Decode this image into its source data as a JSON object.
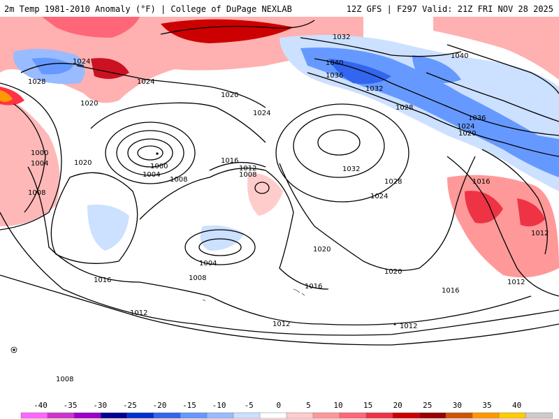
{
  "header": {
    "left_title": "2m Temp 1981-2010 Anomaly (°F) | College of DuPage NEXLAB",
    "right_title": "12Z GFS | F297 Valid: 21Z FRI NOV 28 2025"
  },
  "isobar_labels": [
    {
      "id": "iso-1032-n",
      "text": "1032"
    },
    {
      "id": "iso-1040-a",
      "text": "1040"
    },
    {
      "id": "iso-1040-b",
      "text": "1040"
    },
    {
      "id": "iso-1036-a",
      "text": "1036"
    },
    {
      "id": "iso-1032-c",
      "text": "1032"
    },
    {
      "id": "iso-1028-c",
      "text": "1028"
    },
    {
      "id": "iso-1036-b",
      "text": "1036"
    },
    {
      "id": "iso-1024-c",
      "text": "1024"
    },
    {
      "id": "iso-1020-c",
      "text": "1020"
    },
    {
      "id": "iso-1024-w",
      "text": "1024"
    },
    {
      "id": "iso-1028-w",
      "text": "1028"
    },
    {
      "id": "iso-1024-w2",
      "text": "1024"
    },
    {
      "id": "iso-1020-w",
      "text": "1020"
    },
    {
      "id": "iso-1020-m",
      "text": "1020"
    },
    {
      "id": "iso-1024-m",
      "text": "1024"
    },
    {
      "id": "iso-1000-w",
      "text": "1000"
    },
    {
      "id": "iso-1004-w",
      "text": "1004"
    },
    {
      "id": "iso-1008-w",
      "text": "1008"
    },
    {
      "id": "iso-1020-sw",
      "text": "1020"
    },
    {
      "id": "iso-1000-l",
      "text": "1000"
    },
    {
      "id": "iso-1004-l",
      "text": "1004"
    },
    {
      "id": "iso-1008-l",
      "text": "1008"
    },
    {
      "id": "iso-1016-m",
      "text": "1016"
    },
    {
      "id": "iso-1012-m",
      "text": "1012"
    },
    {
      "id": "iso-1008-m",
      "text": "1008"
    },
    {
      "id": "iso-1032-h",
      "text": "1032"
    },
    {
      "id": "iso-1028-h",
      "text": "1028"
    },
    {
      "id": "iso-1024-h",
      "text": "1024"
    },
    {
      "id": "iso-1016-e",
      "text": "1016"
    },
    {
      "id": "iso-1012-e",
      "text": "1012"
    },
    {
      "id": "iso-1004-s",
      "text": "1004"
    },
    {
      "id": "iso-1008-s",
      "text": "1008"
    },
    {
      "id": "iso-1020-s",
      "text": "1020"
    },
    {
      "id": "iso-1020-s2",
      "text": "1020"
    },
    {
      "id": "iso-1016-sw",
      "text": "1016"
    },
    {
      "id": "iso-1016-s",
      "text": "1016"
    },
    {
      "id": "iso-1016-se",
      "text": "1016"
    },
    {
      "id": "iso-1012-sw",
      "text": "1012"
    },
    {
      "id": "iso-1012-s",
      "text": "1012"
    },
    {
      "id": "iso-1012-s2",
      "text": "1012"
    },
    {
      "id": "iso-1012-se",
      "text": "1012"
    },
    {
      "id": "iso-1008-bl",
      "text": "1008"
    }
  ],
  "legend": {
    "ticks": [
      "-40",
      "-35",
      "-30",
      "-25",
      "-20",
      "-15",
      "-10",
      "-5",
      "0",
      "5",
      "10",
      "15",
      "20",
      "25",
      "30",
      "35",
      "40"
    ],
    "colors": [
      "#ff66ff",
      "#cc33cc",
      "#9900cc",
      "#000099",
      "#0033cc",
      "#3366ee",
      "#6699ff",
      "#99bbff",
      "#cce0ff",
      "#ffffff",
      "#ffcccc",
      "#ff9999",
      "#ff6677",
      "#ee3344",
      "#cc0000",
      "#990000",
      "#cc5500",
      "#ff9900",
      "#ffcc00",
      "#cccccc"
    ]
  }
}
